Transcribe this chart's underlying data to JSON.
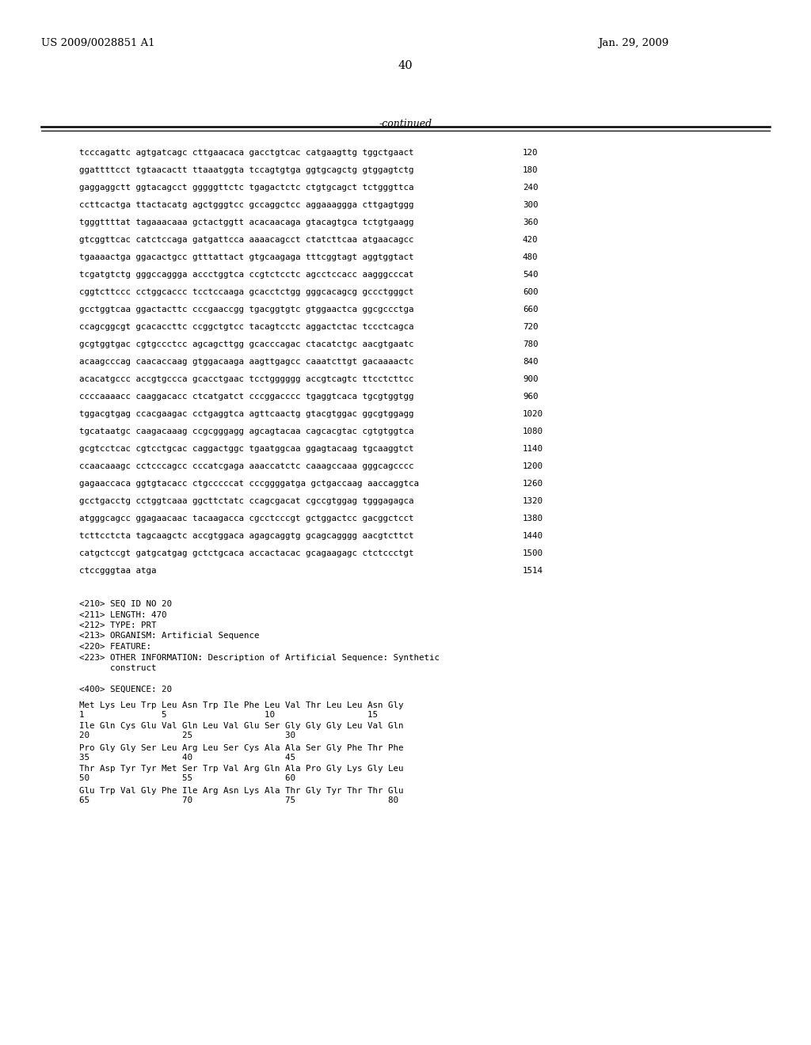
{
  "background_color": "#ffffff",
  "header_left": "US 2009/0028851 A1",
  "header_right": "Jan. 29, 2009",
  "page_number": "40",
  "continued_label": "-continued",
  "sequence_lines": [
    [
      "tcccagattc agtgatcagc cttgaacaca gacctgtcac catgaagttg tggctgaact",
      "120"
    ],
    [
      "ggattttcct tgtaacactt ttaaatggta tccagtgtga ggtgcagctg gtggagtctg",
      "180"
    ],
    [
      "gaggaggctt ggtacagcct gggggttctc tgagactctc ctgtgcagct tctgggttca",
      "240"
    ],
    [
      "ccttcactga ttactacatg agctgggtcc gccaggctcc aggaaaggga cttgagtggg",
      "300"
    ],
    [
      "tgggttttat tagaaacaaa gctactggtt acacaacaga gtacagtgca tctgtgaagg",
      "360"
    ],
    [
      "gtcggttcac catctccaga gatgattcca aaaacagcct ctatcttcaa atgaacagcc",
      "420"
    ],
    [
      "tgaaaactga ggacactgcc gtttattact gtgcaagaga tttcggtagt aggtggtact",
      "480"
    ],
    [
      "tcgatgtctg gggccaggga accctggtca ccgtctcctc agcctccacc aagggcccat",
      "540"
    ],
    [
      "cggtcttccc cctggcaccc tcctccaaga gcacctctgg gggcacagcg gccctgggct",
      "600"
    ],
    [
      "gcctggtcaa ggactacttc cccgaaccgg tgacggtgtc gtggaactca ggcgccctga",
      "660"
    ],
    [
      "ccagcggcgt gcacaccttc ccggctgtcc tacagtcctc aggactctac tccctcagca",
      "720"
    ],
    [
      "gcgtggtgac cgtgccctcc agcagcttgg gcacccagac ctacatctgc aacgtgaatc",
      "780"
    ],
    [
      "acaagcccag caacaccaag gtggacaaga aagttgagcc caaatcttgt gacaaaactc",
      "840"
    ],
    [
      "acacatgccc accgtgccca gcacctgaac tcctgggggg accgtcagtc ttcctcttcc",
      "900"
    ],
    [
      "ccccaaaacc caaggacacc ctcatgatct cccggacccc tgaggtcaca tgcgtggtgg",
      "960"
    ],
    [
      "tggacgtgag ccacgaagac cctgaggtca agttcaactg gtacgtggac ggcgtggagg",
      "1020"
    ],
    [
      "tgcataatgc caagacaaag ccgcgggagg agcagtacaa cagcacgtac cgtgtggtca",
      "1080"
    ],
    [
      "gcgtcctcac cgtcctgcac caggactggc tgaatggcaa ggagtacaag tgcaaggtct",
      "1140"
    ],
    [
      "ccaacaaagc cctcccagcc cccatcgaga aaaccatctc caaagccaaa gggcagcccc",
      "1200"
    ],
    [
      "gagaaccaca ggtgtacacc ctgcccccat cccggggatga gctgaccaag aaccaggtca",
      "1260"
    ],
    [
      "gcctgacctg cctggtcaaa ggcttctatc ccagcgacat cgccgtggag tgggagagca",
      "1320"
    ],
    [
      "atgggcagcc ggagaacaac tacaagacca cgcctcccgt gctggactcc gacggctcct",
      "1380"
    ],
    [
      "tcttcctcta tagcaagctc accgtggaca agagcaggtg gcagcagggg aacgtcttct",
      "1440"
    ],
    [
      "catgctccgt gatgcatgag gctctgcaca accactacac gcagaagagc ctctccctgt",
      "1500"
    ],
    [
      "ctccgggtaa atga",
      "1514"
    ]
  ],
  "metadata_lines": [
    "<210> SEQ ID NO 20",
    "<211> LENGTH: 470",
    "<212> TYPE: PRT",
    "<213> ORGANISM: Artificial Sequence",
    "<220> FEATURE:",
    "<223> OTHER INFORMATION: Description of Artificial Sequence: Synthetic",
    "      construct"
  ],
  "sequence_label": "<400> SEQUENCE: 20",
  "amino_acid_lines": [
    {
      "sequence": "Met Lys Leu Trp Leu Asn Trp Ile Phe Leu Val Thr Leu Leu Asn Gly",
      "numbers": "1               5                   10                  15"
    },
    {
      "sequence": "Ile Gln Cys Glu Val Gln Leu Val Glu Ser Gly Gly Gly Leu Val Gln",
      "numbers": "20                  25                  30"
    },
    {
      "sequence": "Pro Gly Gly Ser Leu Arg Leu Ser Cys Ala Ala Ser Gly Phe Thr Phe",
      "numbers": "35                  40                  45"
    },
    {
      "sequence": "Thr Asp Tyr Tyr Met Ser Trp Val Arg Gln Ala Pro Gly Lys Gly Leu",
      "numbers": "50                  55                  60"
    },
    {
      "sequence": "Glu Trp Val Gly Phe Ile Arg Asn Lys Ala Thr Gly Tyr Thr Thr Glu",
      "numbers": "65                  70                  75                  80"
    }
  ]
}
